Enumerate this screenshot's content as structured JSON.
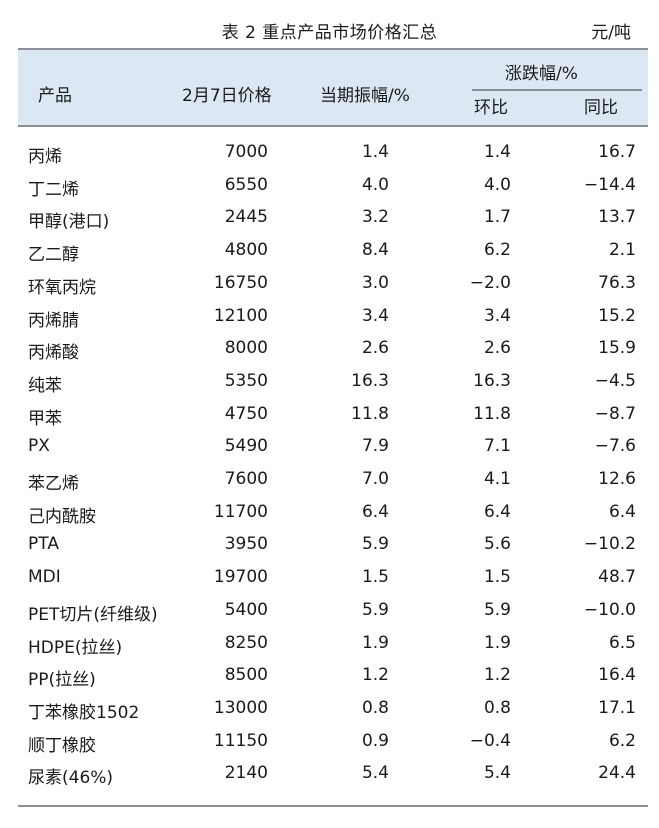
{
  "caption": {
    "title": "表 2  重点产品市场价格汇总",
    "unit": "元/吨"
  },
  "header": {
    "product": "产品",
    "price": "2月7日价格",
    "amplitude": "当期振幅/%",
    "change": "涨跌幅/%",
    "mom": "环比",
    "yoy": "同比"
  },
  "rows": [
    {
      "name": "丙烯",
      "price": "7000",
      "amp": "1.4",
      "mom": "1.4",
      "yoy": "16.7"
    },
    {
      "name": "丁二烯",
      "price": "6550",
      "amp": "4.0",
      "mom": "4.0",
      "yoy": "−14.4"
    },
    {
      "name": "甲醇(港口)",
      "price": "2445",
      "amp": "3.2",
      "mom": "1.7",
      "yoy": "13.7"
    },
    {
      "name": "乙二醇",
      "price": "4800",
      "amp": "8.4",
      "mom": "6.2",
      "yoy": "2.1"
    },
    {
      "name": "环氧丙烷",
      "price": "16750",
      "amp": "3.0",
      "mom": "−2.0",
      "yoy": "76.3"
    },
    {
      "name": "丙烯腈",
      "price": "12100",
      "amp": "3.4",
      "mom": "3.4",
      "yoy": "15.2"
    },
    {
      "name": "丙烯酸",
      "price": "8000",
      "amp": "2.6",
      "mom": "2.6",
      "yoy": "15.9"
    },
    {
      "name": "纯苯",
      "price": "5350",
      "amp": "16.3",
      "mom": "16.3",
      "yoy": "−4.5"
    },
    {
      "name": "甲苯",
      "price": "4750",
      "amp": "11.8",
      "mom": "11.8",
      "yoy": "−8.7"
    },
    {
      "name": "PX",
      "price": "5490",
      "amp": "7.9",
      "mom": "7.1",
      "yoy": "−7.6"
    },
    {
      "name": "苯乙烯",
      "price": "7600",
      "amp": "7.0",
      "mom": "4.1",
      "yoy": "12.6"
    },
    {
      "name": "己内酰胺",
      "price": "11700",
      "amp": "6.4",
      "mom": "6.4",
      "yoy": "6.4"
    },
    {
      "name": "PTA",
      "price": "3950",
      "amp": "5.9",
      "mom": "5.6",
      "yoy": "−10.2"
    },
    {
      "name": "MDI",
      "price": "19700",
      "amp": "1.5",
      "mom": "1.5",
      "yoy": "48.7"
    },
    {
      "name": "PET切片(纤维级)",
      "price": "5400",
      "amp": "5.9",
      "mom": "5.9",
      "yoy": "−10.0"
    },
    {
      "name": "HDPE(拉丝)",
      "price": "8250",
      "amp": "1.9",
      "mom": "1.9",
      "yoy": "6.5"
    },
    {
      "name": "PP(拉丝)",
      "price": "8500",
      "amp": "1.2",
      "mom": "1.2",
      "yoy": "16.4"
    },
    {
      "name": "丁苯橡胶1502",
      "price": "13000",
      "amp": "0.8",
      "mom": "0.8",
      "yoy": "17.1"
    },
    {
      "name": "顺丁橡胶",
      "price": "11150",
      "amp": "0.9",
      "mom": "−0.4",
      "yoy": "6.2"
    },
    {
      "name": "尿素(46%)",
      "price": "2140",
      "amp": "5.4",
      "mom": "5.4",
      "yoy": "24.4"
    }
  ]
}
